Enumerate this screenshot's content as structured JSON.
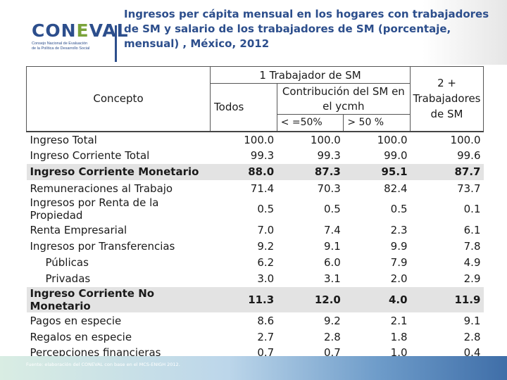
{
  "header": {
    "logo": {
      "word_prefix": "CON",
      "word_accent": "E",
      "word_suffix": "VAL",
      "subtitle_line1": "Consejo Nacional de Evaluación",
      "subtitle_line2": "de la Política de Desarrollo Social"
    },
    "title": "Ingresos per cápita mensual en los hogares con trabajadores de SM y salario de los trabajadores de SM (porcentaje, mensual) , México, 2012"
  },
  "table": {
    "headers": {
      "concepto": "Concepto",
      "trabajador_1": "1 Trabajador de SM",
      "todos": "Todos",
      "contribucion": "Contribución del SM en el ycmh",
      "lt50": "< =50%",
      "gt50": "> 50 %",
      "dos_mas": "2 + Trabajadores de SM"
    },
    "rows": [
      {
        "concept": "Ingreso Total",
        "todos": "100.0",
        "lt50": "100.0",
        "gt50": "100.0",
        "dos": "100.0",
        "shade": false,
        "indent": false
      },
      {
        "concept": "Ingreso Corriente Total",
        "todos": "99.3",
        "lt50": "99.3",
        "gt50": "99.0",
        "dos": "99.6",
        "shade": false,
        "indent": false
      },
      {
        "concept": "Ingreso Corriente Monetario",
        "todos": "88.0",
        "lt50": "87.3",
        "gt50": "95.1",
        "dos": "87.7",
        "shade": true,
        "indent": false
      },
      {
        "concept": "Remuneraciones al Trabajo",
        "todos": "71.4",
        "lt50": "70.3",
        "gt50": "82.4",
        "dos": "73.7",
        "shade": false,
        "indent": false
      },
      {
        "concept": "Ingresos por Renta de la Propiedad",
        "todos": "0.5",
        "lt50": "0.5",
        "gt50": "0.5",
        "dos": "0.1",
        "shade": false,
        "indent": false
      },
      {
        "concept": "Renta Empresarial",
        "todos": "7.0",
        "lt50": "7.4",
        "gt50": "2.3",
        "dos": "6.1",
        "shade": false,
        "indent": false
      },
      {
        "concept": "Ingresos por Transferencias",
        "todos": "9.2",
        "lt50": "9.1",
        "gt50": "9.9",
        "dos": "7.8",
        "shade": false,
        "indent": false
      },
      {
        "concept": "Públicas",
        "todos": "6.2",
        "lt50": "6.0",
        "gt50": "7.9",
        "dos": "4.9",
        "shade": false,
        "indent": true
      },
      {
        "concept": "Privadas",
        "todos": "3.0",
        "lt50": "3.1",
        "gt50": "2.0",
        "dos": "2.9",
        "shade": false,
        "indent": true
      },
      {
        "concept": "Ingreso Corriente No Monetario",
        "todos": "11.3",
        "lt50": "12.0",
        "gt50": "4.0",
        "dos": "11.9",
        "shade": true,
        "indent": false
      },
      {
        "concept": "Pagos en especie",
        "todos": "8.6",
        "lt50": "9.2",
        "gt50": "2.1",
        "dos": "9.1",
        "shade": false,
        "indent": false
      },
      {
        "concept": "Regalos en especie",
        "todos": "2.7",
        "lt50": "2.8",
        "gt50": "1.8",
        "dos": "2.8",
        "shade": false,
        "indent": false
      },
      {
        "concept": "Percepciones financieras",
        "todos": "0.7",
        "lt50": "0.7",
        "gt50": "1.0",
        "dos": "0.4",
        "shade": false,
        "indent": false
      }
    ]
  },
  "footnote": "Fuente: elaboración del CONEVAL con base en el MCS-ENIGH 2012.",
  "colors": {
    "brand_blue": "#2c4e8c",
    "brand_green": "#7aa33a",
    "row_shade": "#e3e3e3"
  }
}
